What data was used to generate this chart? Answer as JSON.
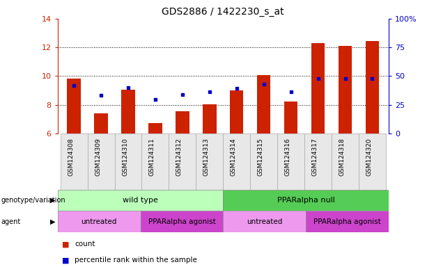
{
  "title": "GDS2886 / 1422230_s_at",
  "samples": [
    "GSM124308",
    "GSM124309",
    "GSM124310",
    "GSM124311",
    "GSM124312",
    "GSM124313",
    "GSM124314",
    "GSM124315",
    "GSM124316",
    "GSM124317",
    "GSM124318",
    "GSM124320"
  ],
  "count_values": [
    9.85,
    7.4,
    9.05,
    6.75,
    7.55,
    8.05,
    9.0,
    10.05,
    8.25,
    12.3,
    12.1,
    12.45
  ],
  "percentile_values": [
    9.35,
    8.65,
    9.2,
    8.35,
    8.7,
    8.9,
    9.15,
    9.45,
    8.9,
    9.85,
    9.85,
    9.85
  ],
  "ylim": [
    6,
    14
  ],
  "yticks_left": [
    6,
    8,
    10,
    12,
    14
  ],
  "yticks_right": [
    0,
    25,
    50,
    75,
    100
  ],
  "bar_color": "#cc2200",
  "dot_color": "#0000cc",
  "genotype_groups": [
    {
      "label": "wild type",
      "start": 0,
      "end": 6,
      "color": "#bbffbb"
    },
    {
      "label": "PPARalpha null",
      "start": 6,
      "end": 12,
      "color": "#55cc55"
    }
  ],
  "agent_groups": [
    {
      "label": "untreated",
      "start": 0,
      "end": 3,
      "color": "#ee99ee"
    },
    {
      "label": "PPARalpha agonist",
      "start": 3,
      "end": 6,
      "color": "#cc44cc"
    },
    {
      "label": "untreated",
      "start": 6,
      "end": 9,
      "color": "#ee99ee"
    },
    {
      "label": "PPARalpha agonist",
      "start": 9,
      "end": 12,
      "color": "#cc44cc"
    }
  ],
  "left_label_color": "#cc2200",
  "right_label_color": "#0000cc",
  "bar_bottom": 6,
  "n_samples": 12
}
